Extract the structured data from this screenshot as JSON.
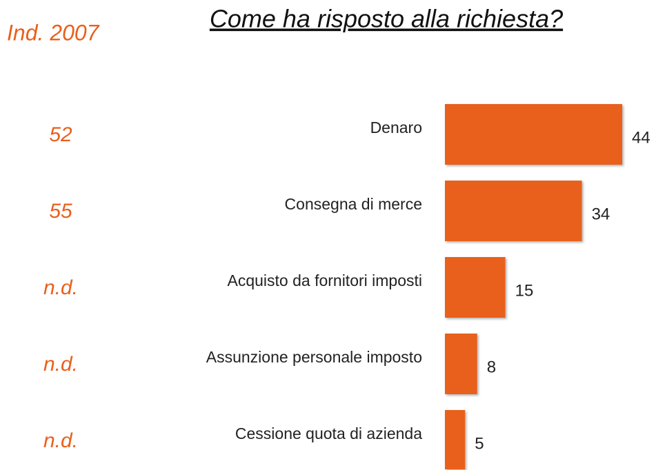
{
  "chart_data": {
    "type": "bar",
    "orientation": "horizontal",
    "title": "Come ha risposto alla richiesta?",
    "categories": [
      "Denaro",
      "Consegna di merce",
      "Acquisto da fornitori imposti",
      "Assunzione personale imposto",
      "Cessione quota di azienda"
    ],
    "values": [
      44,
      34,
      15,
      8,
      5
    ],
    "color": "#e8601c",
    "comparison": {
      "label": "Ind. 2007",
      "values": [
        52,
        55,
        "n.d.",
        "n.d.",
        "n.d."
      ]
    }
  }
}
